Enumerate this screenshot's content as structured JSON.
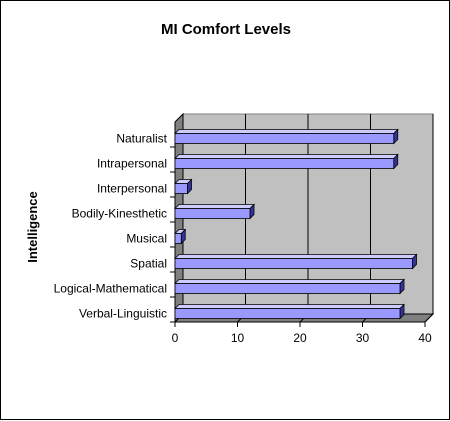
{
  "chart_data": {
    "type": "bar",
    "orientation": "horizontal",
    "title": "MI Comfort Levels",
    "xlabel": "",
    "ylabel": "Intelligence",
    "categories": [
      "Verbal-Linguistic",
      "Logical-Mathematical",
      "Spatial",
      "Musical",
      "Bodily-Kinesthetic",
      "Interpersonal",
      "Intrapersonal",
      "Naturalist"
    ],
    "values": [
      36,
      36,
      38,
      1,
      12,
      2,
      35,
      35
    ],
    "xlim": [
      0,
      40
    ],
    "xticks": [
      "0",
      "10",
      "20",
      "30",
      "40"
    ],
    "grid": "vertical",
    "legend": "none",
    "bar_3d": true,
    "colors": {
      "bar_face": "#9999FF",
      "bar_top": "#CCCCFF",
      "bar_side": "#333399",
      "plot_wall": "#C0C0C0",
      "plot_side_wall": "#808080",
      "plot_floor": "#808080",
      "gridline": "#000000"
    }
  }
}
